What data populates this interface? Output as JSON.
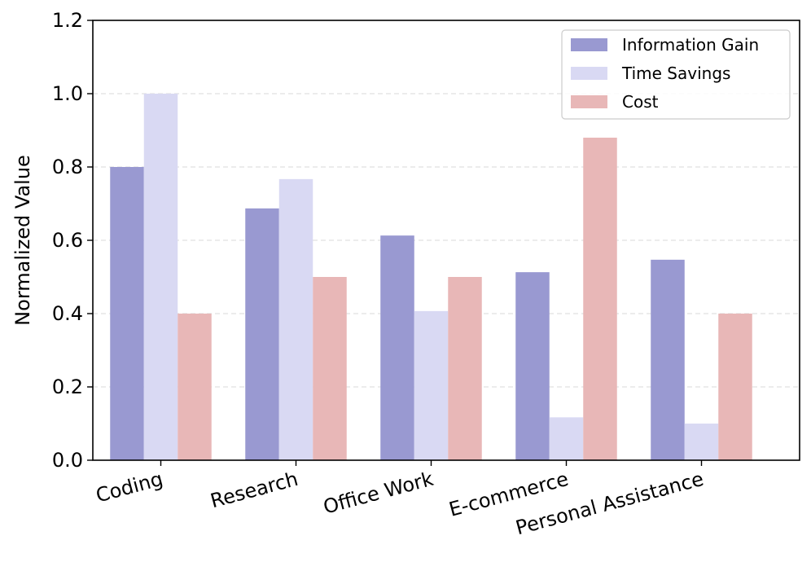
{
  "chart_data": {
    "type": "bar",
    "title": "",
    "xlabel": "",
    "ylabel": "Normalized Value",
    "ylim": [
      0,
      1.2
    ],
    "yticks": [
      0.0,
      0.2,
      0.4,
      0.6,
      0.8,
      1.0,
      1.2
    ],
    "ytick_labels": [
      "0.0",
      "0.2",
      "0.4",
      "0.6",
      "0.8",
      "1.0",
      "1.2"
    ],
    "grid": true,
    "legend_position": "top-right",
    "categories": [
      "Coding",
      "Research",
      "Office Work",
      "E-commerce",
      "Personal Assistance"
    ],
    "series": [
      {
        "name": "Information Gain",
        "color": "#9999d1",
        "values": [
          0.8,
          0.687,
          0.613,
          0.513,
          0.547
        ]
      },
      {
        "name": "Time Savings",
        "color": "#d9d9f3",
        "values": [
          1.0,
          0.767,
          0.407,
          0.117,
          0.1
        ]
      },
      {
        "name": "Cost",
        "color": "#e8b7b7",
        "values": [
          0.4,
          0.5,
          0.5,
          0.88,
          0.4
        ]
      }
    ]
  }
}
